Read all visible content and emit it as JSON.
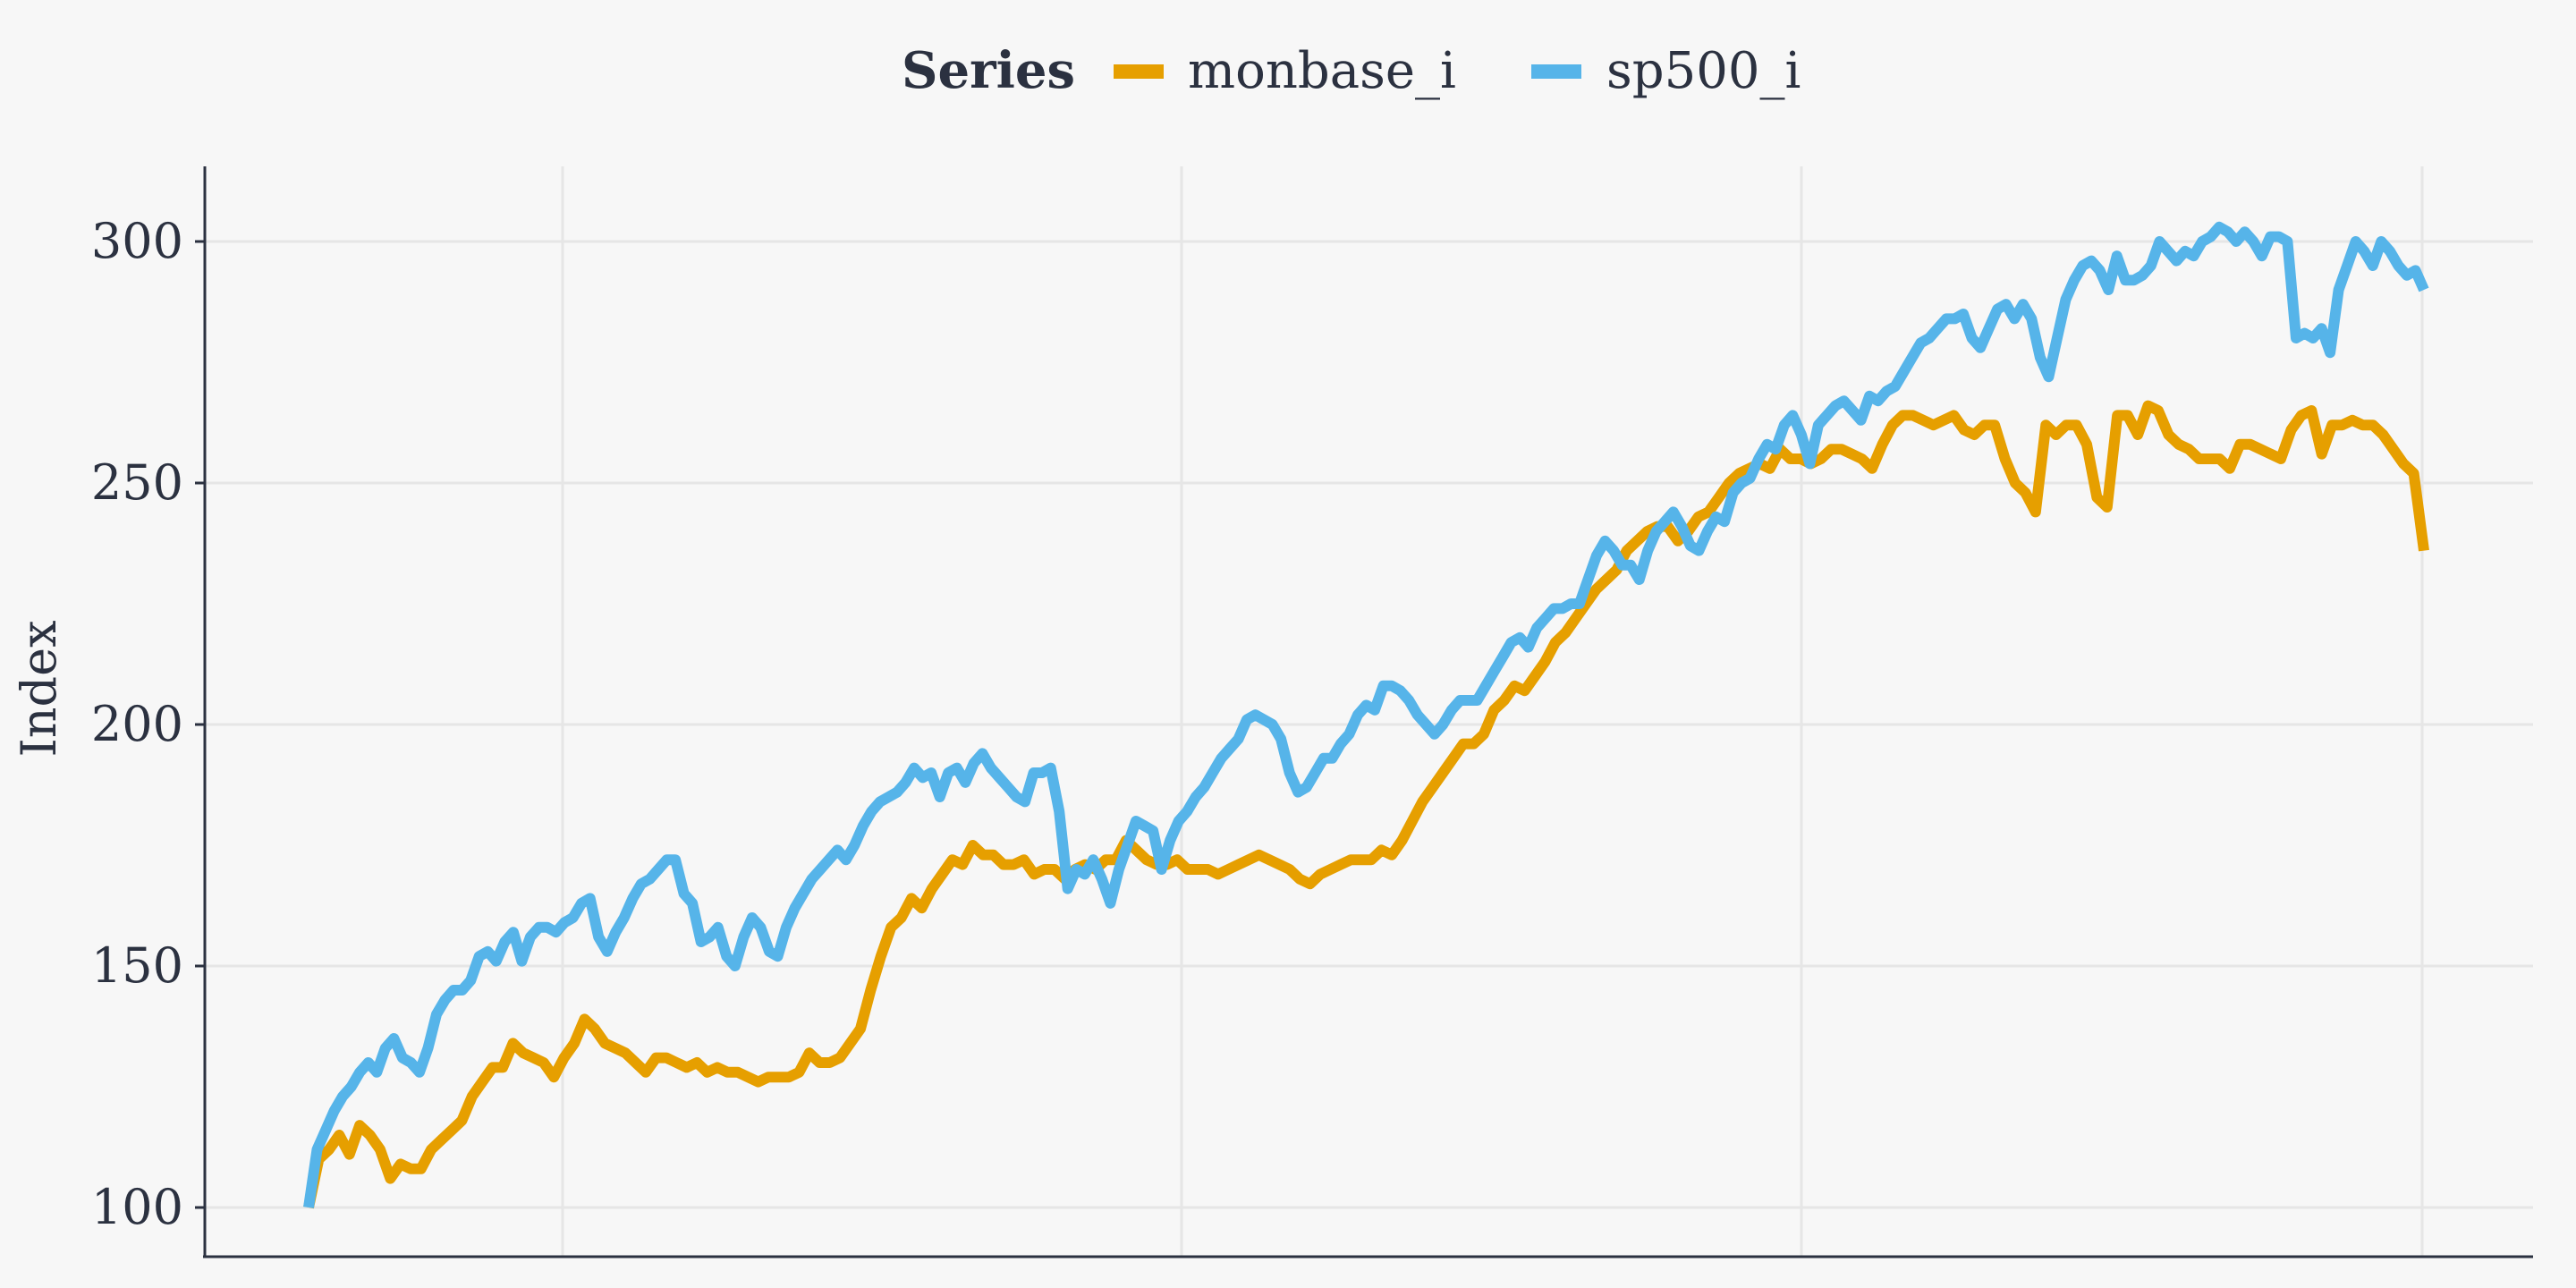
{
  "chart_data": {
    "type": "line",
    "legend": {
      "title": "Series",
      "placement": "top-center"
    },
    "ylabel": "Index",
    "xlabel": "",
    "ylim": [
      90,
      315
    ],
    "y_ticks": [
      100,
      150,
      200,
      250,
      300
    ],
    "x_gridlines": 4,
    "grid": true,
    "series": [
      {
        "name": "monbase_i",
        "color": "#E69F00",
        "values": [
          100,
          110,
          112,
          115,
          111,
          117,
          115,
          112,
          106,
          109,
          108,
          108,
          112,
          114,
          116,
          118,
          123,
          126,
          129,
          129,
          134,
          132,
          131,
          130,
          127,
          131,
          134,
          139,
          137,
          134,
          133,
          132,
          130,
          128,
          131,
          131,
          130,
          129,
          130,
          128,
          129,
          128,
          128,
          127,
          126,
          127,
          127,
          127,
          128,
          132,
          130,
          130,
          131,
          134,
          137,
          145,
          152,
          158,
          160,
          164,
          162,
          166,
          169,
          172,
          171,
          175,
          173,
          173,
          171,
          171,
          172,
          169,
          170,
          170,
          168,
          170,
          171,
          170,
          172,
          172,
          176,
          174,
          172,
          171,
          171,
          172,
          170,
          170,
          170,
          169,
          170,
          171,
          172,
          173,
          172,
          171,
          170,
          168,
          167,
          169,
          170,
          171,
          172,
          172,
          172,
          174,
          173,
          176,
          180,
          184,
          187,
          190,
          193,
          196,
          196,
          198,
          203,
          205,
          208,
          207,
          210,
          213,
          217,
          219,
          222,
          225,
          228,
          230,
          232,
          236,
          238,
          240,
          241,
          241,
          238,
          240,
          243,
          244,
          247,
          250,
          252,
          253,
          254,
          253,
          257,
          255,
          255,
          254,
          255,
          257,
          257,
          256,
          255,
          253,
          258,
          262,
          264,
          264,
          263,
          262,
          263,
          264,
          261,
          260,
          262,
          262,
          255,
          250,
          248,
          244,
          262,
          260,
          262,
          262,
          258,
          247,
          245,
          264,
          264,
          260,
          266,
          265,
          260,
          258,
          257,
          255,
          255,
          255,
          253,
          258,
          258,
          257,
          256,
          255,
          261,
          264,
          265,
          256,
          262,
          262,
          263,
          262,
          262,
          260,
          257,
          254,
          252,
          236
        ]
      },
      {
        "name": "sp500_i",
        "color": "#56B4E9",
        "values": [
          100,
          112,
          116,
          120,
          123,
          125,
          128,
          130,
          128,
          133,
          135,
          131,
          130,
          128,
          133,
          140,
          143,
          145,
          145,
          147,
          152,
          153,
          151,
          155,
          157,
          151,
          156,
          158,
          158,
          157,
          159,
          160,
          163,
          164,
          156,
          153,
          157,
          160,
          164,
          167,
          168,
          170,
          172,
          172,
          165,
          163,
          155,
          156,
          158,
          152,
          150,
          156,
          160,
          158,
          153,
          152,
          158,
          162,
          165,
          168,
          170,
          172,
          174,
          172,
          175,
          179,
          182,
          184,
          185,
          186,
          188,
          191,
          189,
          190,
          185,
          190,
          191,
          188,
          192,
          194,
          191,
          189,
          187,
          185,
          184,
          190,
          190,
          191,
          182,
          166,
          170,
          169,
          172,
          168,
          163,
          170,
          175,
          180,
          179,
          178,
          170,
          176,
          180,
          182,
          185,
          187,
          190,
          193,
          195,
          197,
          201,
          202,
          201,
          200,
          197,
          190,
          186,
          187,
          190,
          193,
          193,
          196,
          198,
          202,
          204,
          203,
          208,
          208,
          207,
          205,
          202,
          200,
          198,
          200,
          203,
          205,
          205,
          205,
          208,
          211,
          214,
          217,
          218,
          216,
          220,
          222,
          224,
          224,
          225,
          225,
          230,
          235,
          238,
          236,
          233,
          233,
          230,
          236,
          240,
          242,
          244,
          241,
          237,
          236,
          240,
          243,
          242,
          248,
          250,
          251,
          255,
          258,
          257,
          262,
          264,
          260,
          254,
          262,
          264,
          266,
          267,
          265,
          263,
          268,
          267,
          269,
          270,
          273,
          276,
          279,
          280,
          282,
          284,
          284,
          285,
          280,
          278,
          282,
          286,
          287,
          284,
          287,
          284,
          276,
          272,
          280,
          288,
          292,
          295,
          296,
          294,
          290,
          297,
          292,
          292,
          293,
          295,
          300,
          298,
          296,
          298,
          297,
          300,
          301,
          303,
          302,
          300,
          302,
          300,
          297,
          301,
          301,
          300,
          280,
          281,
          280,
          282,
          277,
          290,
          295,
          300,
          298,
          295,
          300,
          298,
          295,
          293,
          294,
          290
        ]
      }
    ]
  }
}
